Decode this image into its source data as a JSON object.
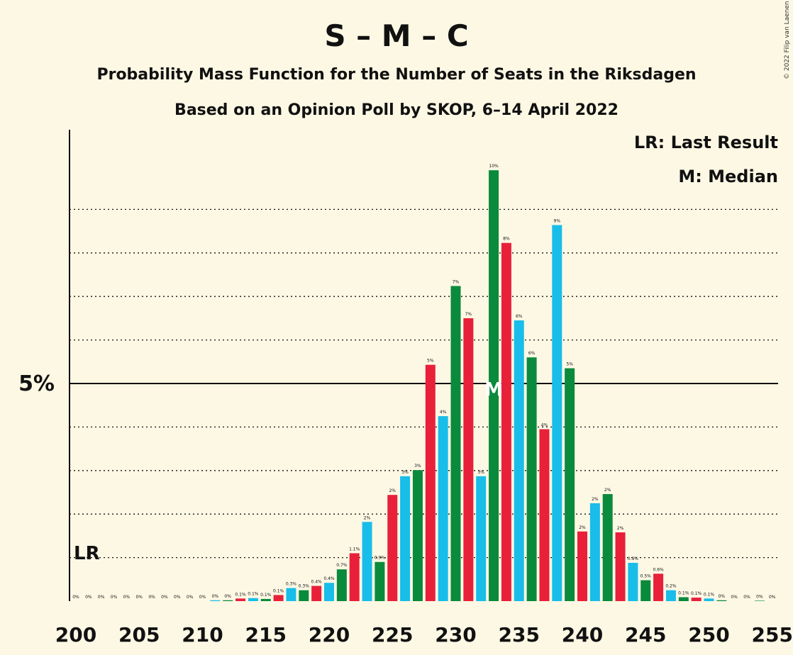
{
  "title": "S – M – C",
  "subtitle1": "Probability Mass Function for the Number of Seats in the Riksdagen",
  "subtitle2": "Based on an Opinion Poll by SKOP, 6–14 April 2022",
  "credit": "© 2022 Filip van Laenen",
  "legend": {
    "last_result": "LR: Last Result",
    "median": "M: Median"
  },
  "markers": {
    "lr_label": "LR",
    "lr_seat": 201,
    "median_label": "M",
    "median_seat": 233
  },
  "colors": {
    "green": "#0a8a3c",
    "red": "#e8203a",
    "blue": "#19bde9",
    "background": "#fdf8e4"
  },
  "chart_data": {
    "type": "bar",
    "xlabel": "",
    "ylabel": "",
    "ylim": [
      0,
      10.5
    ],
    "y_tick_label": "5%",
    "y_major_tick": 5,
    "y_dotted_gridlines": [
      1,
      2,
      3,
      4,
      6,
      7,
      8,
      9
    ],
    "x_tick_labels": [
      "200",
      "205",
      "210",
      "215",
      "220",
      "225",
      "230",
      "235",
      "240",
      "245",
      "250",
      "255"
    ],
    "color_cycle": [
      "green",
      "red",
      "blue"
    ],
    "seats": [
      200,
      201,
      202,
      203,
      204,
      205,
      206,
      207,
      208,
      209,
      210,
      211,
      212,
      213,
      214,
      215,
      216,
      217,
      218,
      219,
      220,
      221,
      222,
      223,
      224,
      225,
      226,
      227,
      228,
      229,
      230,
      231,
      232,
      233,
      234,
      235,
      236,
      237,
      238,
      239,
      240,
      241,
      242,
      243,
      244,
      245,
      246,
      247,
      248,
      249,
      250,
      251,
      252,
      253,
      254,
      255
    ],
    "values": [
      0,
      0,
      0,
      0,
      0,
      0,
      0,
      0,
      0,
      0,
      0,
      0.02,
      0.02,
      0.06,
      0.07,
      0.05,
      0.14,
      0.3,
      0.25,
      0.35,
      0.42,
      0.73,
      1.1,
      1.82,
      0.9,
      2.44,
      2.87,
      3.01,
      5.43,
      4.25,
      7.24,
      6.5,
      2.87,
      9.9,
      8.23,
      6.45,
      5.6,
      3.95,
      8.64,
      5.35,
      1.6,
      2.25,
      2.46,
      1.58,
      0.88,
      0.48,
      0.63,
      0.25,
      0.09,
      0.08,
      0.06,
      0.02,
      0,
      0,
      0.01,
      0
    ],
    "labels": [
      "0%",
      "0%",
      "0%",
      "0%",
      "0%",
      "0%",
      "0%",
      "0%",
      "0%",
      "0%",
      "0%",
      "0%",
      "0%",
      "0.1%",
      "0.1%",
      "0.1%",
      "0.1%",
      "0.3%",
      "0.3%",
      "0.4%",
      "0.4%",
      "0.7%",
      "1.1%",
      "2%",
      "0.9%",
      "2%",
      "3%",
      "3%",
      "5%",
      "4%",
      "7%",
      "7%",
      "3%",
      "10%",
      "8%",
      "6%",
      "6%",
      "4%",
      "9%",
      "5%",
      "2%",
      "2%",
      "2%",
      "2%",
      "0.9%",
      "0.5%",
      "0.6%",
      "0.2%",
      "0.1%",
      "0.1%",
      "0.1%",
      "0%",
      "0%",
      "0%",
      "0%",
      "0%"
    ]
  }
}
